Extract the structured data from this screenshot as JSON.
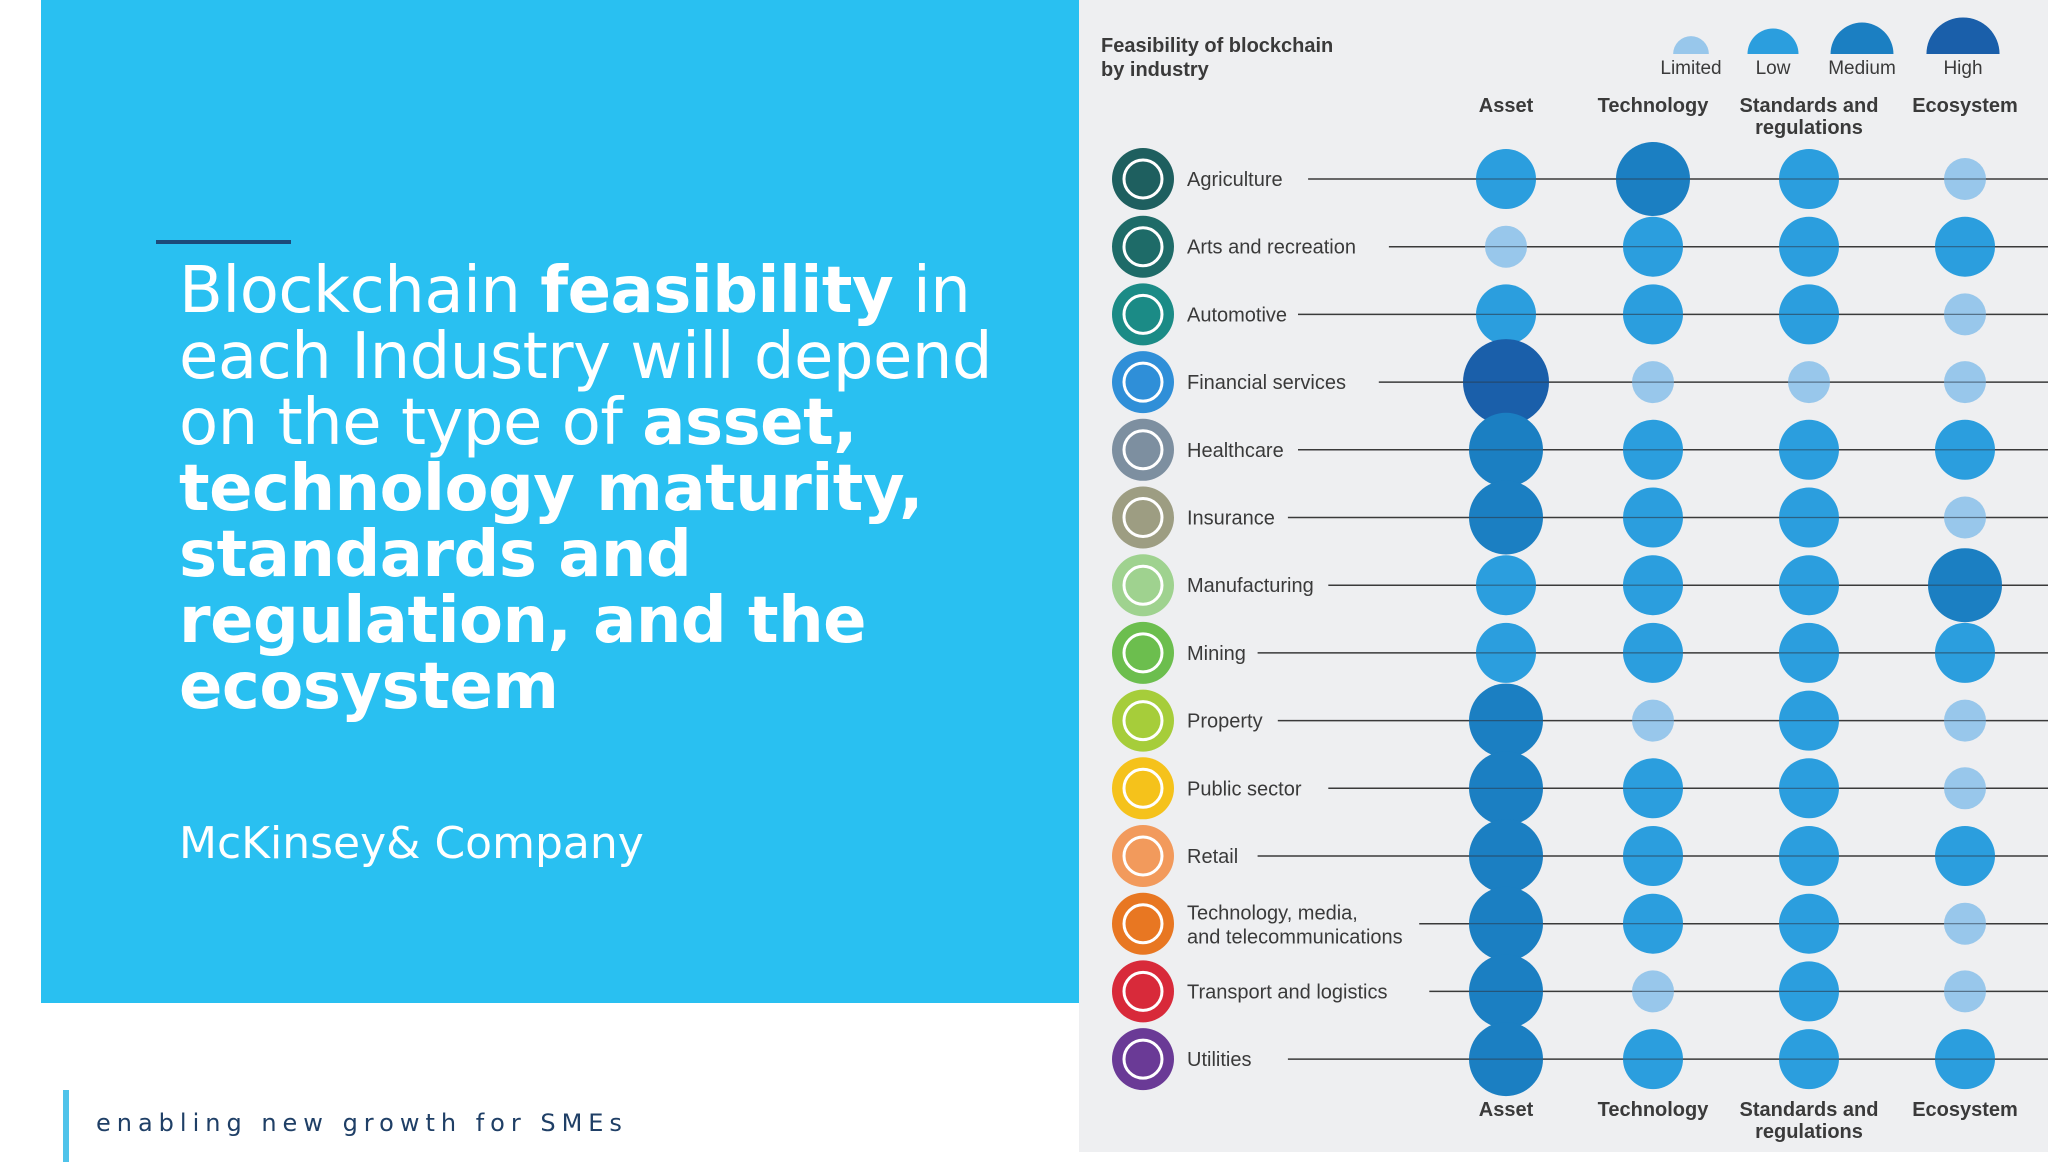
{
  "slide": {
    "headline_parts": [
      {
        "text": "Blockchain ",
        "bold": false
      },
      {
        "text": "feasibility",
        "bold": true
      },
      {
        "text": " in each Industry will depend on the type of ",
        "bold": false
      },
      {
        "text": "asset, technology maturity, standards and regulation, and the ecosystem",
        "bold": true
      }
    ],
    "company": "McKinsey& Company",
    "footer": "enabling new growth for SMEs"
  },
  "colors": {
    "panel_blue": "#29c0f1",
    "accent_dark": "#1c4a7a",
    "chart_bg": "#eeeff1",
    "limited": "#98c7eb",
    "low": "#2b9ede",
    "medium": "#1b7fc2",
    "high": "#1a5faa"
  },
  "chart_data": {
    "type": "table",
    "title": "Feasibility of blockchain by industry",
    "legend": [
      "Limited",
      "Low",
      "Medium",
      "High"
    ],
    "legend_placement": "top-right",
    "columns": [
      "Asset",
      "Technology",
      "Standards and regulations",
      "Ecosystem"
    ],
    "rows": [
      {
        "industry": "Agriculture",
        "icon": "cow-icon",
        "icon_color": "#1e5f5f",
        "values": [
          "Low",
          "Medium",
          "Low",
          "Limited"
        ]
      },
      {
        "industry": "Arts and recreation",
        "icon": "director-chair-icon",
        "icon_color": "#1e6b68",
        "values": [
          "Limited",
          "Low",
          "Low",
          "Low"
        ]
      },
      {
        "industry": "Automotive",
        "icon": "chassis-icon",
        "icon_color": "#1b8b86",
        "values": [
          "Low",
          "Low",
          "Low",
          "Limited"
        ]
      },
      {
        "industry": "Financial services",
        "icon": "bank-icon",
        "icon_color": "#2f8fd8",
        "values": [
          "High",
          "Limited",
          "Limited",
          "Limited"
        ]
      },
      {
        "industry": "Healthcare",
        "icon": "hand-icon",
        "icon_color": "#7d8fa0",
        "values": [
          "Medium",
          "Low",
          "Low",
          "Low"
        ]
      },
      {
        "industry": "Insurance",
        "icon": "document-icon",
        "icon_color": "#9d9d82",
        "values": [
          "Medium",
          "Low",
          "Low",
          "Limited"
        ]
      },
      {
        "industry": "Manufacturing",
        "icon": "robot-arm-icon",
        "icon_color": "#9fd28f",
        "values": [
          "Low",
          "Low",
          "Low",
          "Medium"
        ]
      },
      {
        "industry": "Mining",
        "icon": "hard-hat-icon",
        "icon_color": "#6cbe4e",
        "values": [
          "Low",
          "Low",
          "Low",
          "Low"
        ]
      },
      {
        "industry": "Property",
        "icon": "building-icon",
        "icon_color": "#a6cd3a",
        "values": [
          "Medium",
          "Limited",
          "Low",
          "Limited"
        ]
      },
      {
        "industry": "Public sector",
        "icon": "handshake-icon",
        "icon_color": "#f5c21b",
        "values": [
          "Medium",
          "Low",
          "Low",
          "Limited"
        ]
      },
      {
        "industry": "Retail",
        "icon": "cart-icon",
        "icon_color": "#f29a5c",
        "values": [
          "Medium",
          "Low",
          "Low",
          "Low"
        ]
      },
      {
        "industry": "Technology, media, and telecommunications",
        "label_lines": [
          "Technology, media,",
          "and telecommunications"
        ],
        "icon": "film-icon",
        "icon_color": "#e87722",
        "values": [
          "Medium",
          "Low",
          "Low",
          "Limited"
        ]
      },
      {
        "industry": "Transport and logistics",
        "icon": "truck-icon",
        "icon_color": "#d82a3a",
        "values": [
          "Medium",
          "Limited",
          "Low",
          "Limited"
        ]
      },
      {
        "industry": "Utilities",
        "icon": "lightning-icon",
        "icon_color": "#6a3a96",
        "values": [
          "Medium",
          "Low",
          "Low",
          "Low"
        ]
      }
    ]
  }
}
